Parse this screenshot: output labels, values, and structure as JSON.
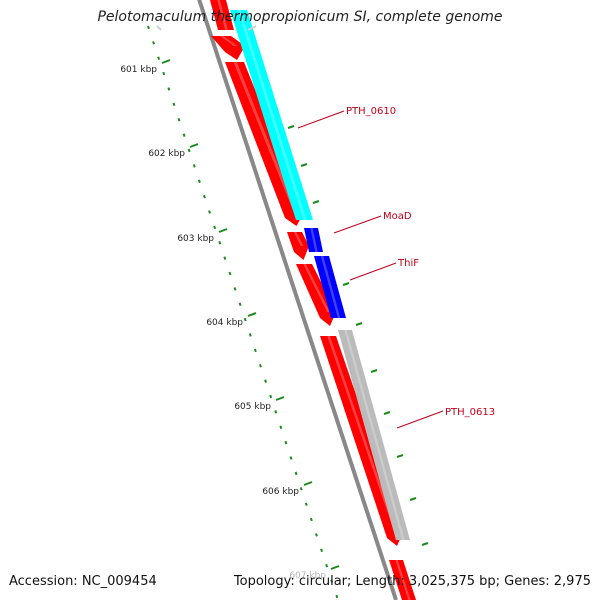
{
  "title": "Pelotomaculum thermopropionicum SI, complete genome",
  "footer": {
    "accession": "Accession: NC_009454",
    "summary": "Topology: circular; Length: 3,025,375 bp; Genes: 2,975"
  },
  "colors": {
    "forward_cds": "#ff0000",
    "cyan_feature": "#00ffff",
    "blue_feature": "#0000ff",
    "gray_feature": "#bbbbbb",
    "backbone": "#888888",
    "tick": "#1a8a1a",
    "label": "#c0001a"
  },
  "scale": {
    "ticks": [
      {
        "label": "601 kbp"
      },
      {
        "label": "602 kbp"
      },
      {
        "label": "603 kbp"
      },
      {
        "label": "604 kbp"
      },
      {
        "label": "605 kbp"
      },
      {
        "label": "606 kbp"
      },
      {
        "label": "607 kbp"
      }
    ]
  },
  "genes": [
    {
      "label": "PTH_0610",
      "color": "cyan"
    },
    {
      "label": "MoaD",
      "color": "blue"
    },
    {
      "label": "ThiF",
      "color": "blue"
    },
    {
      "label": "PTH_0613",
      "color": "gray"
    }
  ]
}
